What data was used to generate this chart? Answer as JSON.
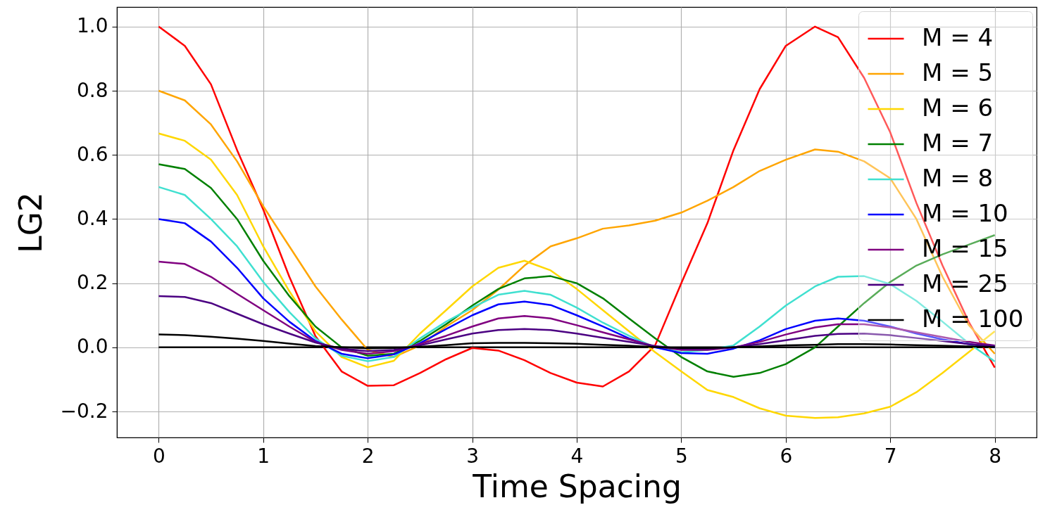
{
  "chart_data": {
    "type": "line",
    "xlabel": "Time Spacing",
    "ylabel": "LG2",
    "x": [
      0,
      0.25,
      0.5,
      0.75,
      1,
      1.25,
      1.5,
      1.75,
      2,
      2.25,
      2.5,
      2.75,
      3,
      3.25,
      3.5,
      3.75,
      4,
      4.25,
      4.5,
      4.75,
      5,
      5.25,
      5.5,
      5.75,
      6,
      6.28,
      6.5,
      6.75,
      7,
      7.25,
      7.5,
      7.75,
      8
    ],
    "series": [
      {
        "name": "M = 4",
        "color": "#ff0000",
        "values": [
          1,
          0.94,
          0.82,
          0.615,
          0.43,
          0.22,
          0.035,
          -0.075,
          -0.12,
          -0.118,
          -0.08,
          -0.037,
          -0.002,
          -0.01,
          -0.04,
          -0.08,
          -0.11,
          -0.122,
          -0.075,
          0.006,
          0.2,
          0.387,
          0.615,
          0.805,
          0.94,
          1,
          0.967,
          0.84,
          0.67,
          0.45,
          0.255,
          0.08,
          -0.063
        ]
      },
      {
        "name": "M = 5",
        "color": "#ffa500",
        "values": [
          0.8,
          0.77,
          0.695,
          0.58,
          0.44,
          0.315,
          0.19,
          0.087,
          -0.008,
          -0.03,
          0.006,
          0.065,
          0.116,
          0.18,
          0.255,
          0.315,
          0.34,
          0.37,
          0.38,
          0.395,
          0.42,
          0.457,
          0.5,
          0.55,
          0.585,
          0.617,
          0.61,
          0.58,
          0.527,
          0.4,
          0.22,
          0.07,
          -0.02
        ]
      },
      {
        "name": "M = 6",
        "color": "#ffd700",
        "values": [
          0.667,
          0.644,
          0.585,
          0.475,
          0.315,
          0.175,
          0.05,
          -0.03,
          -0.062,
          -0.042,
          0.043,
          0.116,
          0.19,
          0.248,
          0.27,
          0.24,
          0.182,
          0.116,
          0.05,
          -0.015,
          -0.075,
          -0.133,
          -0.155,
          -0.19,
          -0.213,
          -0.22,
          -0.218,
          -0.206,
          -0.185,
          -0.14,
          -0.08,
          -0.015,
          0.05
        ]
      },
      {
        "name": "M = 7",
        "color": "#008000",
        "values": [
          0.571,
          0.556,
          0.497,
          0.4,
          0.27,
          0.16,
          0.065,
          0,
          -0.026,
          -0.02,
          0.02,
          0.072,
          0.13,
          0.182,
          0.215,
          0.222,
          0.2,
          0.153,
          0.09,
          0.028,
          -0.03,
          -0.075,
          -0.092,
          -0.08,
          -0.052,
          0,
          0.065,
          0.138,
          0.204,
          0.255,
          0.29,
          0.32,
          0.35
        ]
      },
      {
        "name": "M = 8",
        "color": "#40e0d0",
        "values": [
          0.5,
          0.475,
          0.4,
          0.315,
          0.204,
          0.11,
          0.028,
          -0.026,
          -0.043,
          -0.03,
          0.028,
          0.08,
          0.124,
          0.164,
          0.176,
          0.164,
          0.124,
          0.077,
          0.036,
          0,
          -0.015,
          -0.008,
          0.006,
          0.065,
          0.13,
          0.19,
          0.22,
          0.222,
          0.197,
          0.145,
          0.08,
          0.013,
          -0.044
        ]
      },
      {
        "name": "M = 10",
        "color": "#0000ff",
        "values": [
          0.4,
          0.387,
          0.33,
          0.248,
          0.153,
          0.08,
          0.02,
          -0.02,
          -0.034,
          -0.022,
          0.013,
          0.057,
          0.1,
          0.134,
          0.143,
          0.132,
          0.1,
          0.065,
          0.028,
          0,
          -0.018,
          -0.02,
          -0.004,
          0.022,
          0.057,
          0.083,
          0.09,
          0.083,
          0.065,
          0.043,
          0.025,
          0.01,
          0
        ]
      },
      {
        "name": "M = 15",
        "color": "#800080",
        "values": [
          0.267,
          0.26,
          0.22,
          0.167,
          0.116,
          0.065,
          0.017,
          -0.008,
          -0.02,
          -0.012,
          0.01,
          0.036,
          0.065,
          0.09,
          0.098,
          0.09,
          0.069,
          0.047,
          0.025,
          0.003,
          -0.008,
          -0.008,
          0,
          0.017,
          0.04,
          0.062,
          0.072,
          0.072,
          0.062,
          0.047,
          0.032,
          0.017,
          0.006
        ]
      },
      {
        "name": "M = 25",
        "color": "#4b0082",
        "values": [
          0.16,
          0.157,
          0.138,
          0.105,
          0.072,
          0.043,
          0.015,
          -0.004,
          -0.012,
          -0.008,
          0.006,
          0.025,
          0.043,
          0.054,
          0.057,
          0.054,
          0.043,
          0.03,
          0.017,
          0.004,
          -0.004,
          -0.004,
          0,
          0.01,
          0.022,
          0.036,
          0.042,
          0.043,
          0.038,
          0.029,
          0.02,
          0.01,
          0.004
        ]
      },
      {
        "name": "M = 100",
        "color": "#000000",
        "values": [
          0.04,
          0.038,
          0.033,
          0.027,
          0.02,
          0.012,
          0.004,
          0,
          -0.003,
          -0.002,
          0.002,
          0.007,
          0.013,
          0.014,
          0.014,
          0.013,
          0.011,
          0.008,
          0.005,
          0.001,
          -0.002,
          -0.002,
          0,
          0.003,
          0.006,
          0.008,
          0.01,
          0.01,
          0.009,
          0.007,
          0.005,
          0.003,
          0.001
        ]
      },
      {
        "color": "#000000",
        "x": [
          0,
          8
        ],
        "values": [
          0,
          0
        ]
      }
    ],
    "xlim": [
      -0.4,
      8.4
    ],
    "xticks": [
      0,
      1,
      2,
      3,
      4,
      5,
      6,
      7,
      8
    ],
    "ylim": [
      -0.281,
      1.061
    ],
    "yticks": [
      {
        "value": -0.2,
        "label": "−0.2"
      },
      {
        "value": 0,
        "label": "0.0"
      },
      {
        "value": 0.2,
        "label": "0.2"
      },
      {
        "value": 0.4,
        "label": "0.4"
      },
      {
        "value": 0.6,
        "label": "0.6"
      },
      {
        "value": 0.8,
        "label": "0.8"
      },
      {
        "value": 1,
        "label": "1.0"
      }
    ],
    "grid": true,
    "legend": "top right"
  }
}
